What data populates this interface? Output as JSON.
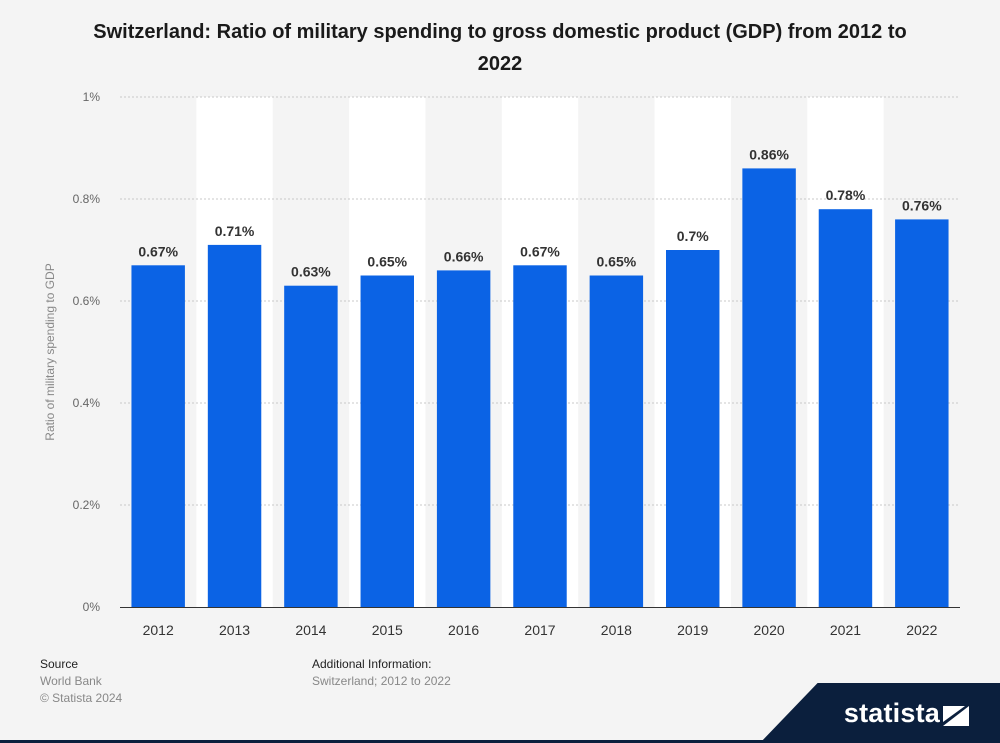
{
  "chart_data": {
    "type": "bar",
    "title": "Switzerland: Ratio of military spending to gross domestic product (GDP) from 2012 to 2022",
    "xlabel": "",
    "ylabel": "Ratio of military spending to GDP",
    "categories": [
      "2012",
      "2013",
      "2014",
      "2015",
      "2016",
      "2017",
      "2018",
      "2019",
      "2020",
      "2021",
      "2022"
    ],
    "values": [
      0.67,
      0.71,
      0.63,
      0.65,
      0.66,
      0.67,
      0.65,
      0.7,
      0.86,
      0.78,
      0.76
    ],
    "value_labels": [
      "0.67%",
      "0.71%",
      "0.63%",
      "0.65%",
      "0.66%",
      "0.67%",
      "0.65%",
      "0.7%",
      "0.86%",
      "0.78%",
      "0.76%"
    ],
    "yticks": [
      0,
      0.2,
      0.4,
      0.6,
      0.8,
      1
    ],
    "ytick_labels": [
      "0%",
      "0.2%",
      "0.4%",
      "0.6%",
      "0.8%",
      "1%"
    ],
    "ylim": [
      0,
      1
    ],
    "grid": true,
    "bar_color": "#0b63e5",
    "alt_band_color": "#ffffff"
  },
  "footer": {
    "source_heading": "Source",
    "source_name": "World Bank",
    "copyright": "© Statista 2024",
    "info_heading": "Additional Information:",
    "info_text": "Switzerland; 2012 to 2022"
  },
  "brand": {
    "name": "statista",
    "background": "#0b1f3d"
  }
}
